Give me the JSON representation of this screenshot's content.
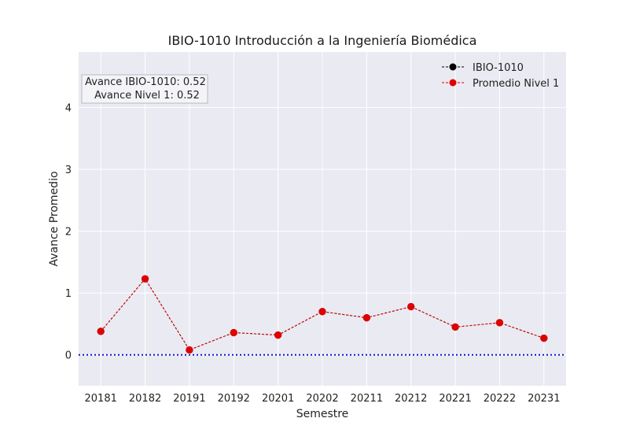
{
  "chart_data": {
    "type": "line",
    "title": "IBIO-1010 Introducción a la Ingeniería Biomédica",
    "xlabel": "Semestre",
    "ylabel": "Avance Promedio",
    "categories": [
      "20181",
      "20182",
      "20191",
      "20192",
      "20201",
      "20202",
      "20211",
      "20212",
      "20221",
      "20222",
      "20231"
    ],
    "ylim": [
      -0.5,
      4.9
    ],
    "yticks": [
      0,
      1,
      2,
      3,
      4
    ],
    "grid": true,
    "legend_position": "top-right",
    "reference_line": {
      "y": 0,
      "style": "dotted",
      "color": "#1515c8"
    },
    "series": [
      {
        "name": "IBIO-1010",
        "values": [
          0.38,
          1.23,
          0.08,
          0.36,
          0.32,
          0.7,
          0.6,
          0.78,
          0.45,
          0.52,
          0.27
        ],
        "color": "#000000",
        "line_style": "dashed",
        "marker": "circle"
      },
      {
        "name": "Promedio Nivel 1",
        "values": [
          0.38,
          1.23,
          0.08,
          0.36,
          0.32,
          0.7,
          0.6,
          0.78,
          0.45,
          0.52,
          0.27
        ],
        "color": "#e00000",
        "line_style": "dashed",
        "marker": "circle"
      }
    ],
    "annotation": {
      "lines": [
        "Avance IBIO-1010: 0.52",
        "Avance Nivel 1: 0.52"
      ],
      "position": "top-left"
    }
  }
}
